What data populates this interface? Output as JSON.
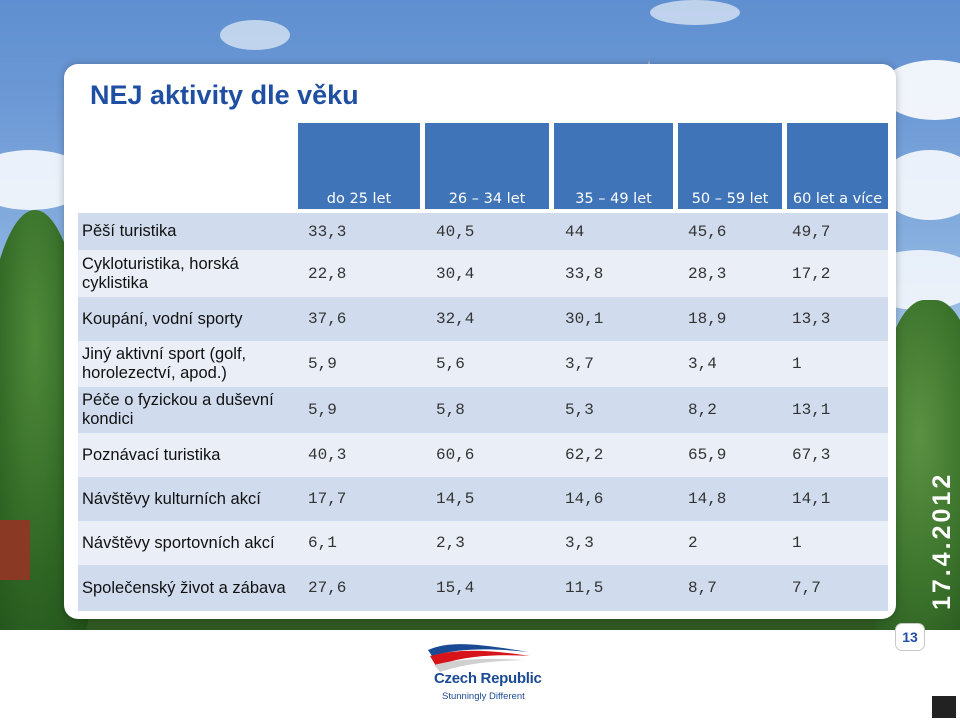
{
  "slide": {
    "title": "NEJ aktivity dle věku",
    "date": "17.4.2012",
    "page_number": "13"
  },
  "table": {
    "columns": [
      "do 25 let",
      "26 – 34 let",
      "35 – 49 let",
      "50 – 59 let",
      "60 let a více"
    ],
    "rows": [
      {
        "label": "Pěší turistika",
        "values": [
          "33,3",
          "40,5",
          "44",
          "45,6",
          "49,7"
        ]
      },
      {
        "label": "Cykloturistika, horská cyklistika",
        "values": [
          "22,8",
          "30,4",
          "33,8",
          "28,3",
          "17,2"
        ]
      },
      {
        "label": "Koupání, vodní sporty",
        "values": [
          "37,6",
          "32,4",
          "30,1",
          "18,9",
          "13,3"
        ]
      },
      {
        "label": "Jiný aktivní sport (golf, horolezectví, apod.)",
        "values": [
          "5,9",
          "5,6",
          "3,7",
          "3,4",
          "1"
        ]
      },
      {
        "label": "Péče o fyzickou a duševní kondici",
        "values": [
          "5,9",
          "5,8",
          "5,3",
          "8,2",
          "13,1"
        ]
      },
      {
        "label": "Poznávací turistika",
        "values": [
          "40,3",
          "60,6",
          "62,2",
          "65,9",
          "67,3"
        ]
      },
      {
        "label": "Návštěvy kulturních akcí",
        "values": [
          "17,7",
          "14,5",
          "14,6",
          "14,8",
          "14,1"
        ]
      },
      {
        "label": "Návštěvy sportovních akcí",
        "values": [
          "6,1",
          "2,3",
          "3,3",
          "2",
          "1"
        ]
      },
      {
        "label": "Společenský život a zábava",
        "values": [
          "27,6",
          "15,4",
          "11,5",
          "8,7",
          "7,7"
        ]
      }
    ]
  },
  "logo": {
    "name": "Czech Republic",
    "tagline": "Stunningly Different"
  },
  "colors": {
    "title": "#1f4fa3",
    "header_bg": "#3f74b8",
    "row_dark": "#d0dcee",
    "row_light": "#e9eef7"
  }
}
